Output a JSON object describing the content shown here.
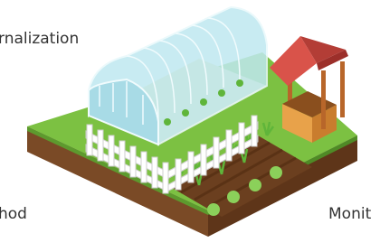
{
  "labels": {
    "top_left": "rnalization",
    "bottom_left": "hod",
    "bottom_right": "Monit"
  }
}
